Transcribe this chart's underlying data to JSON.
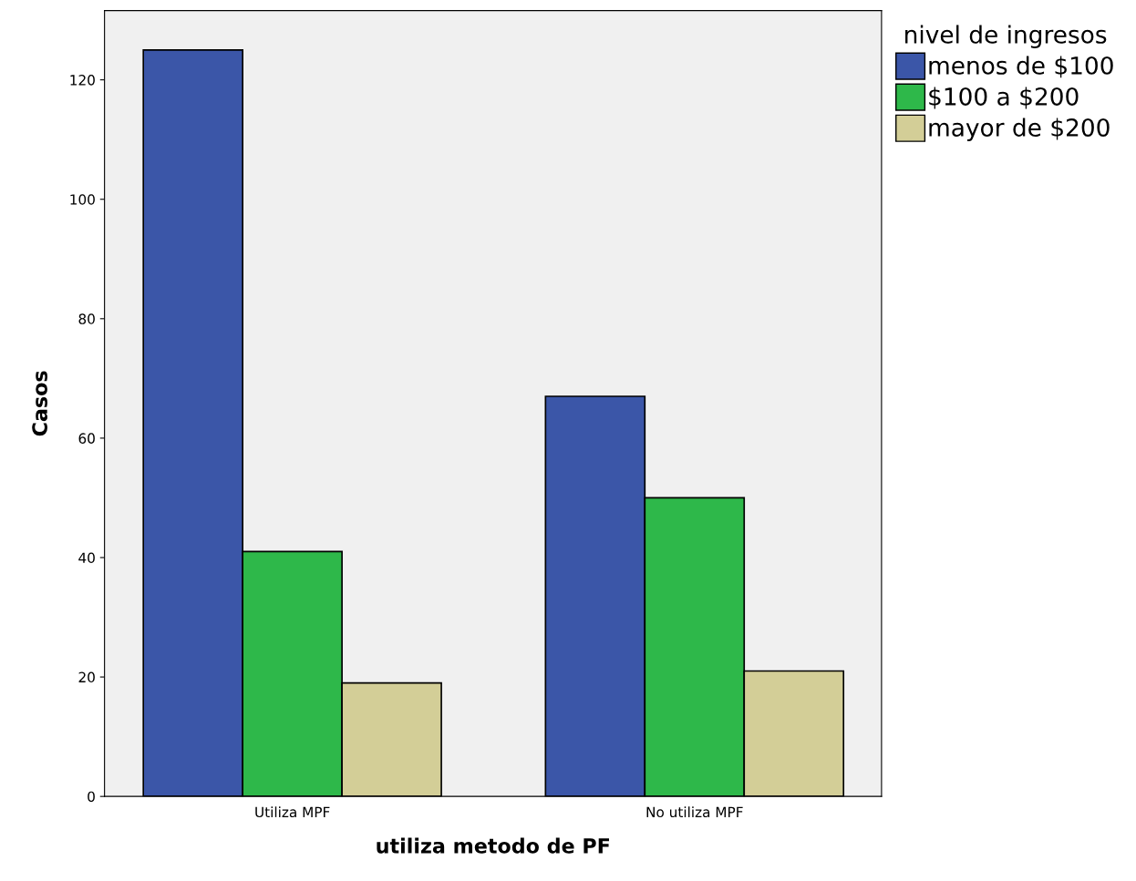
{
  "chart_data": {
    "type": "bar",
    "xlabel": "utiliza metodo de PF",
    "ylabel": "Casos",
    "legend_title": "nivel de ingresos",
    "categories": [
      "Utiliza MPF",
      "No utiliza MPF"
    ],
    "series": [
      {
        "name": "menos de $100",
        "color": "#3b56a8",
        "values": [
          125,
          67
        ]
      },
      {
        "name": "$100 a $200",
        "color": "#2eb84a",
        "values": [
          41,
          50
        ]
      },
      {
        "name": "mayor de $200",
        "color": "#d3ce97",
        "values": [
          19,
          21
        ]
      }
    ],
    "ylim": [
      0,
      131.6
    ],
    "yticks": [
      0,
      20,
      40,
      60,
      80,
      100,
      120
    ],
    "grid": false,
    "legend": "right"
  }
}
